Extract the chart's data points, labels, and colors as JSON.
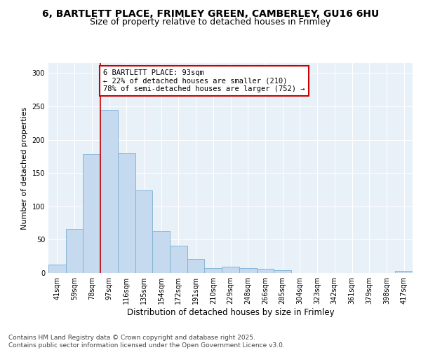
{
  "title_line1": "6, BARTLETT PLACE, FRIMLEY GREEN, CAMBERLEY, GU16 6HU",
  "title_line2": "Size of property relative to detached houses in Frimley",
  "xlabel": "Distribution of detached houses by size in Frimley",
  "ylabel": "Number of detached properties",
  "categories": [
    "41sqm",
    "59sqm",
    "78sqm",
    "97sqm",
    "116sqm",
    "135sqm",
    "154sqm",
    "172sqm",
    "191sqm",
    "210sqm",
    "229sqm",
    "248sqm",
    "266sqm",
    "285sqm",
    "304sqm",
    "323sqm",
    "342sqm",
    "361sqm",
    "379sqm",
    "398sqm",
    "417sqm"
  ],
  "values": [
    13,
    66,
    179,
    245,
    180,
    124,
    63,
    41,
    21,
    7,
    9,
    7,
    6,
    4,
    0,
    0,
    0,
    0,
    0,
    0,
    3
  ],
  "bar_color": "#c5d9ef",
  "bar_edge_color": "#7bafd4",
  "vline_x_index": 3,
  "vline_color": "#cc0000",
  "ann_line1": "6 BARTLETT PLACE: 93sqm",
  "ann_line2": "← 22% of detached houses are smaller (210)",
  "ann_line3": "78% of semi-detached houses are larger (752) →",
  "ann_facecolor": "#ffffff",
  "ann_edgecolor": "#cc0000",
  "ylim": [
    0,
    315
  ],
  "yticks": [
    0,
    50,
    100,
    150,
    200,
    250,
    300
  ],
  "fig_bg": "#ffffff",
  "plot_bg": "#e8f0f8",
  "grid_color": "#ffffff",
  "title1_fontsize": 10,
  "title2_fontsize": 9,
  "xlabel_fontsize": 8.5,
  "ylabel_fontsize": 8,
  "tick_fontsize": 7,
  "ann_fontsize": 7.5,
  "footer_fontsize": 6.5,
  "footer1": "Contains HM Land Registry data © Crown copyright and database right 2025.",
  "footer2": "Contains public sector information licensed under the Open Government Licence v3.0."
}
